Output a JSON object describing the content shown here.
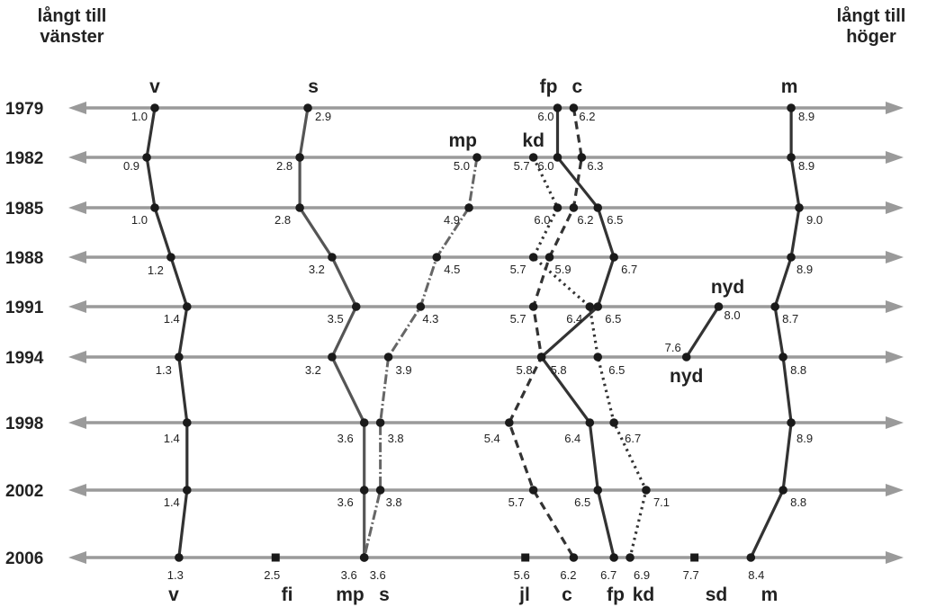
{
  "chart_data": {
    "type": "line",
    "corner_left": [
      "långt till",
      "vänster"
    ],
    "corner_right": [
      "långt till",
      "höger"
    ],
    "years": [
      "1979",
      "1982",
      "1985",
      "1988",
      "1991",
      "1994",
      "1998",
      "2002",
      "2006"
    ],
    "series": [
      {
        "name": "v",
        "style": "solid",
        "color": "#333333",
        "points": [
          [
            "1979",
            1.0
          ],
          [
            "1982",
            0.9
          ],
          [
            "1985",
            1.0
          ],
          [
            "1988",
            1.2
          ],
          [
            "1991",
            1.4
          ],
          [
            "1994",
            1.3
          ],
          [
            "1998",
            1.4
          ],
          [
            "2002",
            1.4
          ],
          [
            "2006",
            1.3
          ]
        ]
      },
      {
        "name": "s",
        "style": "solid",
        "color": "#555555",
        "points": [
          [
            "1979",
            2.9
          ],
          [
            "1982",
            2.8
          ],
          [
            "1985",
            2.8
          ],
          [
            "1988",
            3.2
          ],
          [
            "1991",
            3.5
          ],
          [
            "1994",
            3.2
          ],
          [
            "1998",
            3.6
          ],
          [
            "2002",
            3.6
          ],
          [
            "2006",
            3.6
          ]
        ]
      },
      {
        "name": "mp",
        "style": "dashdot",
        "color": "#666666",
        "points": [
          [
            "1982",
            5.0
          ],
          [
            "1985",
            4.9
          ],
          [
            "1988",
            4.5
          ],
          [
            "1991",
            4.3
          ],
          [
            "1994",
            3.9
          ],
          [
            "1998",
            3.8
          ],
          [
            "2002",
            3.8
          ],
          [
            "2006",
            3.6
          ]
        ]
      },
      {
        "name": "kd",
        "style": "dotted",
        "color": "#333333",
        "points": [
          [
            "1982",
            5.7
          ],
          [
            "1985",
            6.0
          ],
          [
            "1988",
            5.7
          ],
          [
            "1991",
            6.4
          ],
          [
            "1994",
            6.5
          ],
          [
            "1998",
            6.7
          ],
          [
            "2002",
            7.1
          ],
          [
            "2006",
            6.9
          ]
        ]
      },
      {
        "name": "fp",
        "style": "solid",
        "color": "#333333",
        "points": [
          [
            "1979",
            6.0
          ],
          [
            "1982",
            6.0
          ],
          [
            "1985",
            6.5
          ],
          [
            "1988",
            6.7
          ],
          [
            "1991",
            6.5
          ],
          [
            "1994",
            5.8
          ],
          [
            "1998",
            6.4
          ],
          [
            "2002",
            6.5
          ],
          [
            "2006",
            6.7
          ]
        ]
      },
      {
        "name": "c",
        "style": "dashed",
        "color": "#333333",
        "points": [
          [
            "1979",
            6.2
          ],
          [
            "1982",
            6.3
          ],
          [
            "1985",
            6.2
          ],
          [
            "1988",
            5.9
          ],
          [
            "1991",
            5.7
          ],
          [
            "1994",
            5.8
          ],
          [
            "1998",
            5.4
          ],
          [
            "2002",
            5.7
          ],
          [
            "2006",
            6.2
          ]
        ]
      },
      {
        "name": "m",
        "style": "solid",
        "color": "#333333",
        "points": [
          [
            "1979",
            8.9
          ],
          [
            "1982",
            8.9
          ],
          [
            "1985",
            9.0
          ],
          [
            "1988",
            8.9
          ],
          [
            "1991",
            8.7
          ],
          [
            "1994",
            8.8
          ],
          [
            "1998",
            8.9
          ],
          [
            "2002",
            8.8
          ],
          [
            "2006",
            8.4
          ]
        ]
      },
      {
        "name": "nyd",
        "style": "solid",
        "color": "#333333",
        "points": [
          [
            "1991",
            8.0
          ],
          [
            "1994",
            7.6
          ]
        ]
      }
    ],
    "singles": [
      {
        "name": "fi",
        "year": "2006",
        "value": 2.5
      },
      {
        "name": "jl",
        "year": "2006",
        "value": 5.6
      },
      {
        "name": "sd",
        "year": "2006",
        "value": 7.7
      }
    ],
    "top_labels": [
      {
        "text": "v",
        "series": "v",
        "year": "1979"
      },
      {
        "text": "s",
        "series": "s",
        "year": "1979"
      },
      {
        "text": "fp",
        "series": "fp",
        "year": "1979"
      },
      {
        "text": "c",
        "series": "c",
        "year": "1979"
      },
      {
        "text": "m",
        "series": "m",
        "year": "1979"
      },
      {
        "text": "mp",
        "series": "mp",
        "year": "1982"
      },
      {
        "text": "kd",
        "series": "kd",
        "year": "1982"
      },
      {
        "text": "nyd",
        "series": "nyd",
        "year": "1991"
      },
      {
        "text": "nyd",
        "series": "nyd",
        "year": "1994"
      }
    ],
    "bottom_labels": [
      "v",
      "fi",
      "mp",
      "s",
      "jl",
      "c",
      "fp",
      "kd",
      "sd",
      "m"
    ]
  }
}
